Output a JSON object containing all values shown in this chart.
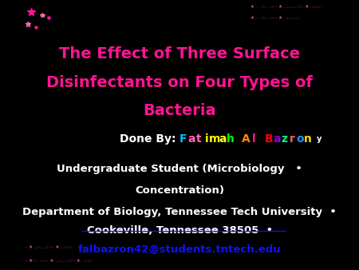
{
  "bg_color": "#000000",
  "title_line1": "The Effect of Three Surface",
  "title_line2": "Disinfectants on Four Types of",
  "title_line3": "Bacteria",
  "title_color": "#FF1493",
  "done_by_prefix": "Done By: ",
  "done_by_name": "Fatimah Al Bazron",
  "done_by_prefix_color": "#FFFFFF",
  "name_colors": [
    "#00BFFF",
    "#FF69B4",
    "#FF69B4",
    "#FFFF00",
    "#FFFF00",
    "#FFFF00",
    "#00FF00",
    "#00FF00",
    "#FF8C00",
    "#FF1493",
    "#00FFFF",
    "#FF0000",
    "#9400D3",
    "#00FF7F",
    "#FF6347",
    "#1E90FF",
    "#FFD700"
  ],
  "line2_text": "Undergraduate Student (Microbiology   •",
  "line2b_text": "Concentration)",
  "line3_text": "Department of Biology, Tennessee Tech University  •",
  "line4_text": "Cookeville, Tennessee 38505  •",
  "line5_text": "falbazron42@students.tntech.edu",
  "body_color": "#FFFFFF",
  "email_color": "#1010FF",
  "figsize": [
    4.5,
    3.38
  ],
  "dpi": 100,
  "title_fontsize": 14,
  "body_fontsize": 9.5,
  "done_by_fontsize": 10
}
